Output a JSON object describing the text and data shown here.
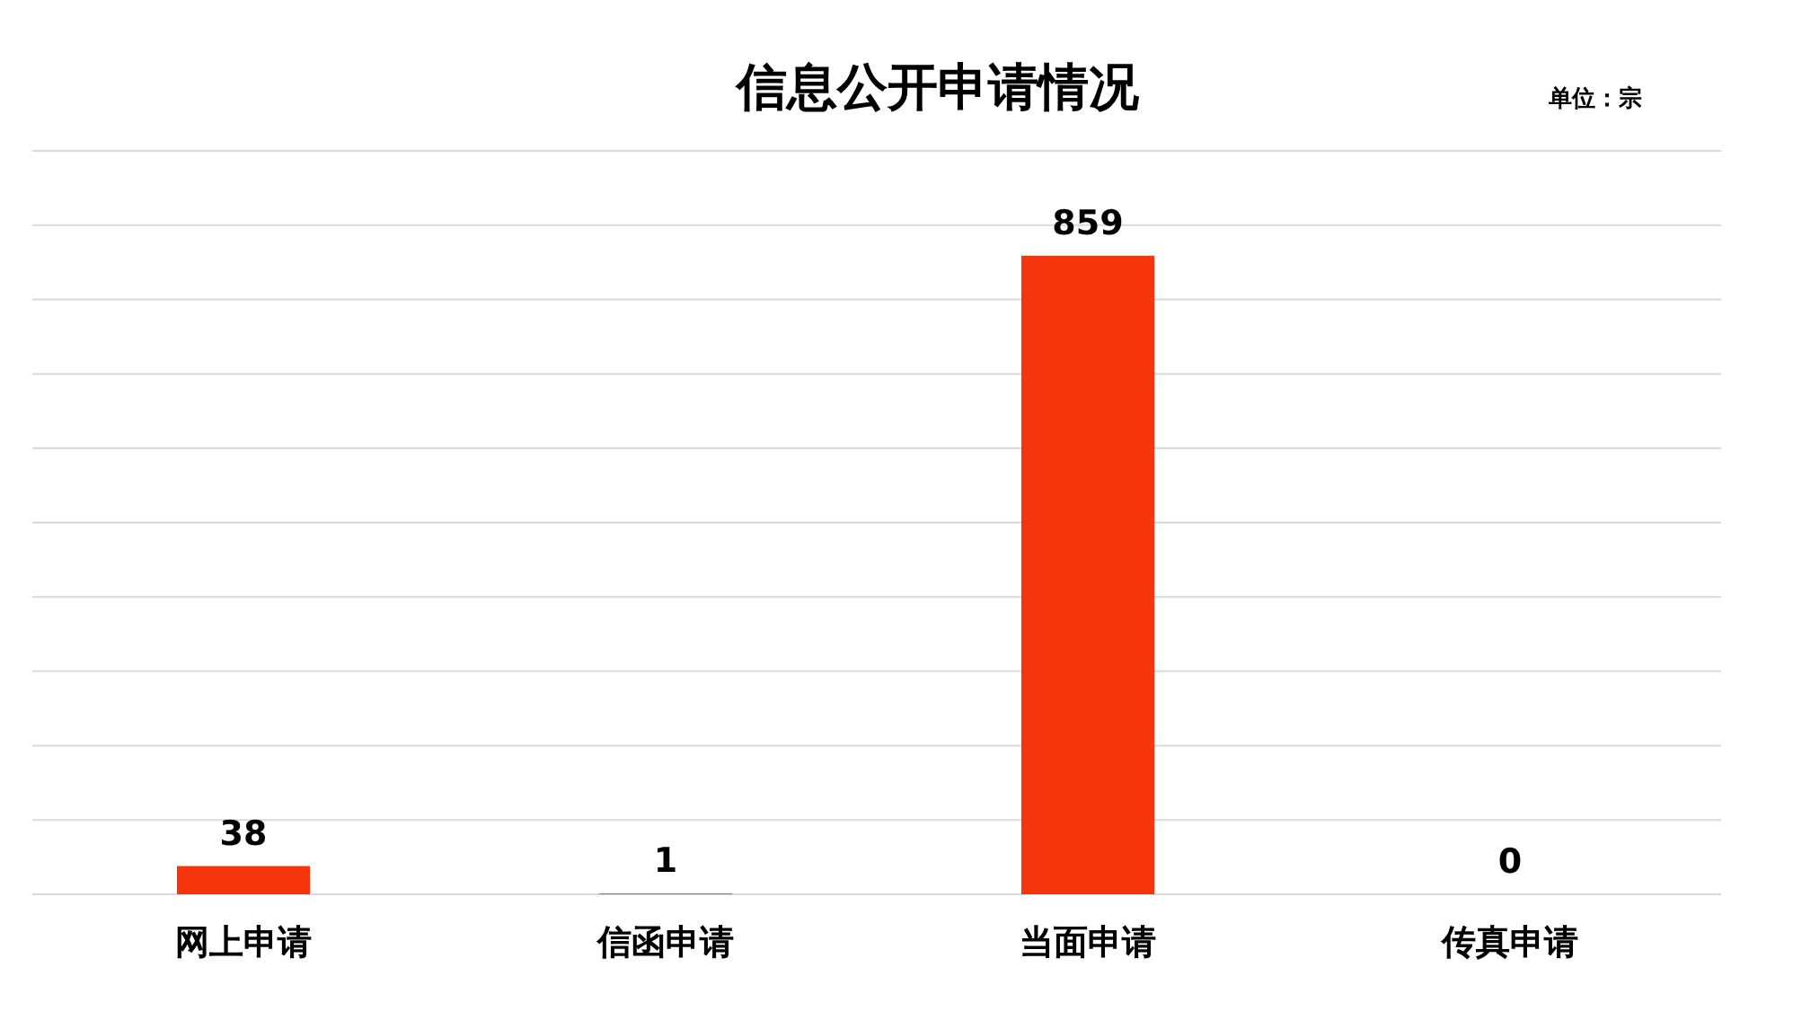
{
  "chart_data": {
    "type": "bar",
    "title": "信息公开申请情况",
    "annotations": [
      "单位：宗"
    ],
    "categories": [
      "网上申请",
      "信函申请",
      "当面申请",
      "传真申请"
    ],
    "values": [
      38,
      1,
      859,
      0
    ],
    "color": "#f5350c",
    "data_labels": true,
    "ylim": [
      0,
      1000
    ],
    "yticks": [
      {
        "value": 0,
        "label": null
      },
      {
        "value": 100,
        "label": null
      },
      {
        "value": 200,
        "label": null
      },
      {
        "value": 300,
        "label": null
      },
      {
        "value": 400,
        "label": null
      },
      {
        "value": 500,
        "label": null
      },
      {
        "value": 600,
        "label": null
      },
      {
        "value": 700,
        "label": null
      },
      {
        "value": 800,
        "label": null
      },
      {
        "value": 900,
        "label": null
      },
      {
        "value": 1000,
        "label": null
      }
    ],
    "grid": "y",
    "tick_labels": "x"
  }
}
